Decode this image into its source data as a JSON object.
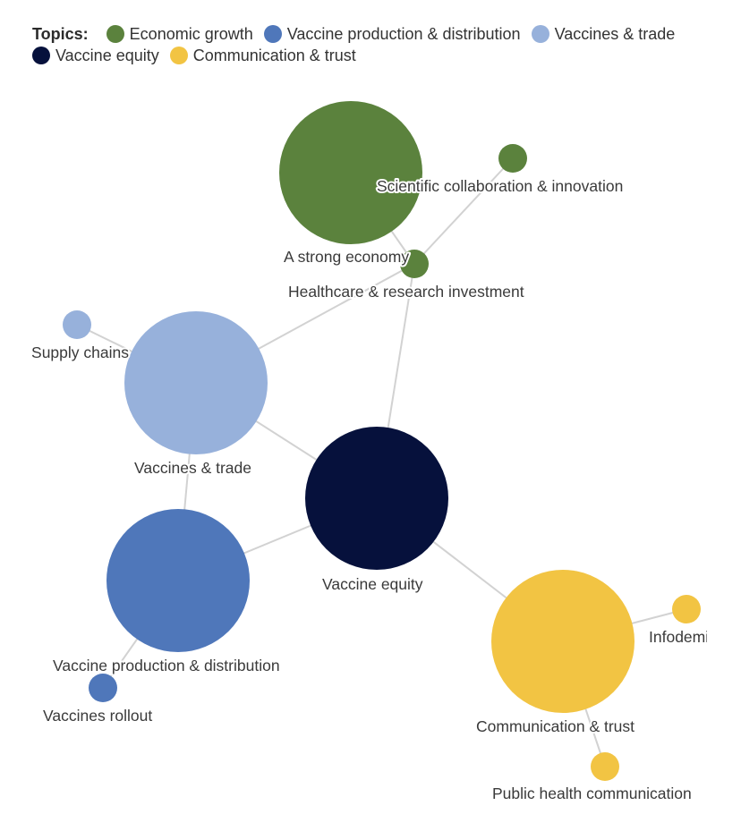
{
  "legend": {
    "title": "Topics:",
    "items": [
      {
        "label": "Economic growth",
        "color": "#5b823d"
      },
      {
        "label": "Vaccine production & distribution",
        "color": "#4f77ba"
      },
      {
        "label": "Vaccines & trade",
        "color": "#97b1db"
      },
      {
        "label": "Vaccine equity",
        "color": "#06113c"
      },
      {
        "label": "Communication & trust",
        "color": "#f2c443"
      }
    ]
  },
  "nodes": [
    {
      "id": "strong-economy",
      "label": "A strong economy",
      "topic": 0,
      "size": "large"
    },
    {
      "id": "scientific-collab",
      "label": "Scientific collaboration & innovation",
      "topic": 0,
      "size": "small"
    },
    {
      "id": "healthcare-research",
      "label": "Healthcare & research investment",
      "topic": 0,
      "size": "small"
    },
    {
      "id": "supply-chains",
      "label": "Supply chains",
      "topic": 2,
      "size": "small"
    },
    {
      "id": "vaccines-trade",
      "label": "Vaccines & trade",
      "topic": 2,
      "size": "large"
    },
    {
      "id": "vaccine-equity",
      "label": "Vaccine equity",
      "topic": 3,
      "size": "large"
    },
    {
      "id": "vaccine-production",
      "label": "Vaccine production & distribution",
      "topic": 1,
      "size": "large"
    },
    {
      "id": "vaccines-rollout",
      "label": "Vaccines rollout",
      "topic": 1,
      "size": "small"
    },
    {
      "id": "communication-trust",
      "label": "Communication & trust",
      "topic": 4,
      "size": "large"
    },
    {
      "id": "infodemic",
      "label": "Infodemic",
      "topic": 4,
      "size": "small"
    },
    {
      "id": "public-health-comm",
      "label": "Public health communication",
      "topic": 4,
      "size": "small"
    }
  ],
  "edges": [
    [
      "strong-economy",
      "healthcare-research"
    ],
    [
      "scientific-collab",
      "healthcare-research"
    ],
    [
      "healthcare-research",
      "vaccines-trade"
    ],
    [
      "healthcare-research",
      "vaccine-equity"
    ],
    [
      "supply-chains",
      "vaccines-trade"
    ],
    [
      "vaccines-trade",
      "vaccine-equity"
    ],
    [
      "vaccines-trade",
      "vaccine-production"
    ],
    [
      "vaccine-production",
      "vaccine-equity"
    ],
    [
      "vaccine-production",
      "vaccines-rollout"
    ],
    [
      "vaccine-equity",
      "communication-trust"
    ],
    [
      "communication-trust",
      "infodemic"
    ],
    [
      "communication-trust",
      "public-health-comm"
    ]
  ]
}
